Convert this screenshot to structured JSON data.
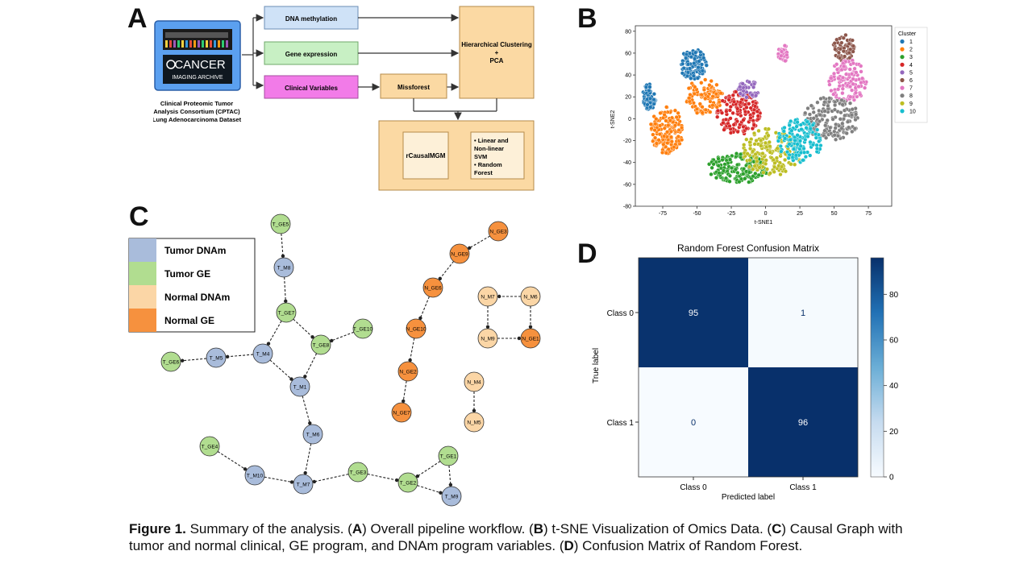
{
  "figure": {
    "panel_letters": [
      "A",
      "B",
      "C",
      "D"
    ],
    "caption": {
      "label": "Figure 1.",
      "parts": [
        {
          "t": " Summary of the analysis. (",
          "b": false
        },
        {
          "t": "A",
          "b": true
        },
        {
          "t": ") Overall pipeline workflow. (",
          "b": false
        },
        {
          "t": "B",
          "b": true
        },
        {
          "t": ") t-SNE Visualization of Omics Data. (",
          "b": false
        },
        {
          "t": "C",
          "b": true
        },
        {
          "t": ") Causal Graph with tumor and normal clinical, GE program, and DNAm program variables. (",
          "b": false
        },
        {
          "t": "D",
          "b": true
        },
        {
          "t": ") Confusion Matrix of Random Forest.",
          "b": false
        }
      ]
    }
  },
  "pipeline": {
    "logo_text_big": "CANCER",
    "logo_text_small": "IMAGING ARCHIVE",
    "dataset_label": [
      "Clinical Proteomic Tumor",
      "Analysis Consortium (CPTAC)",
      "Lung Adenocarcinoma Dataset"
    ],
    "inputs": [
      "DNA methylation",
      "Gene expression",
      "Clinical Variables"
    ],
    "clustering": [
      "Hierarchical Clustering",
      "+",
      "PCA"
    ],
    "missforest": "Missforest",
    "rcausal": "rCausalMGM",
    "models": [
      "• Linear  and",
      "  Non-linear",
      "  SVM",
      "• Random",
      "  Forest"
    ],
    "colors": {
      "dna": "#cfe2f7",
      "ge": "#c8f0c4",
      "clin": "#f27be8",
      "orange": "#fbd9a3",
      "logo": "#5ba0f0"
    }
  },
  "tsne": {
    "xlabel": "t-SNE1",
    "ylabel": "t-SNE2",
    "legend_title": "Cluster",
    "xticks": [
      -75,
      -50,
      -25,
      0,
      25,
      50,
      75
    ],
    "yticks": [
      80,
      60,
      40,
      20,
      0,
      -20,
      -40,
      -60,
      -80
    ],
    "xlim": [
      -95,
      92
    ],
    "ylim": [
      -80,
      85
    ],
    "clusters": [
      {
        "name": "1",
        "color": "#1f77b4"
      },
      {
        "name": "2",
        "color": "#ff7f0e"
      },
      {
        "name": "3",
        "color": "#2ca02c"
      },
      {
        "name": "4",
        "color": "#d62728"
      },
      {
        "name": "5",
        "color": "#9467bd"
      },
      {
        "name": "6",
        "color": "#8c564b"
      },
      {
        "name": "7",
        "color": "#e377c2"
      },
      {
        "name": "8",
        "color": "#7f7f7f"
      },
      {
        "name": "9",
        "color": "#bcbd22"
      },
      {
        "name": "10",
        "color": "#17becf"
      }
    ]
  },
  "causal_graph": {
    "legend": [
      {
        "label": "Tumor DNAm",
        "color": "#a9bcdb"
      },
      {
        "label": "Tumor GE",
        "color": "#b1dd90"
      },
      {
        "label": "Normal DNAm",
        "color": "#fbd6a6"
      },
      {
        "label": "Normal GE",
        "color": "#f6913e"
      }
    ],
    "nodes": [
      {
        "id": "T_GE5",
        "kind": 1
      },
      {
        "id": "T_M8",
        "kind": 0
      },
      {
        "id": "T_GE7",
        "kind": 1
      },
      {
        "id": "T_GE10",
        "kind": 1
      },
      {
        "id": "T_GE8",
        "kind": 1
      },
      {
        "id": "T_M4",
        "kind": 0
      },
      {
        "id": "T_GE6",
        "kind": 1
      },
      {
        "id": "T_M5",
        "kind": 0
      },
      {
        "id": "T_M1",
        "kind": 0
      },
      {
        "id": "T_M6",
        "kind": 0
      },
      {
        "id": "T_GE4",
        "kind": 1
      },
      {
        "id": "T_M10",
        "kind": 0
      },
      {
        "id": "T_M7",
        "kind": 0
      },
      {
        "id": "T_GE3",
        "kind": 1
      },
      {
        "id": "T_GE2",
        "kind": 1
      },
      {
        "id": "T_GE1",
        "kind": 1
      },
      {
        "id": "T_M9",
        "kind": 0
      },
      {
        "id": "N_GE3",
        "kind": 3
      },
      {
        "id": "N_GE9",
        "kind": 3
      },
      {
        "id": "N_GE6",
        "kind": 3
      },
      {
        "id": "N_GE10",
        "kind": 3
      },
      {
        "id": "N_GE2",
        "kind": 3
      },
      {
        "id": "N_GE7",
        "kind": 3
      },
      {
        "id": "N_M7",
        "kind": 2
      },
      {
        "id": "N_M6",
        "kind": 2
      },
      {
        "id": "N_M9",
        "kind": 2
      },
      {
        "id": "N_GE1",
        "kind": 3
      },
      {
        "id": "N_M4",
        "kind": 2
      },
      {
        "id": "N_M5",
        "kind": 2
      }
    ],
    "edges": [
      [
        "T_GE5",
        "T_M8"
      ],
      [
        "T_M8",
        "T_GE7"
      ],
      [
        "T_GE7",
        "T_M4"
      ],
      [
        "T_GE7",
        "T_GE8"
      ],
      [
        "T_GE10",
        "T_GE8"
      ],
      [
        "T_GE8",
        "T_M1"
      ],
      [
        "T_M4",
        "T_M5"
      ],
      [
        "T_M5",
        "T_GE6"
      ],
      [
        "T_M4",
        "T_M1"
      ],
      [
        "T_M1",
        "T_M6"
      ],
      [
        "T_M6",
        "T_M7"
      ],
      [
        "T_GE4",
        "T_M10"
      ],
      [
        "T_M10",
        "T_M7"
      ],
      [
        "T_GE3",
        "T_M7"
      ],
      [
        "T_GE3",
        "T_GE2"
      ],
      [
        "T_GE1",
        "T_GE2"
      ],
      [
        "T_GE1",
        "T_M9"
      ],
      [
        "T_GE2",
        "T_M9"
      ],
      [
        "N_GE3",
        "N_GE9"
      ],
      [
        "N_GE9",
        "N_GE6"
      ],
      [
        "N_GE6",
        "N_GE10"
      ],
      [
        "N_GE10",
        "N_GE2"
      ],
      [
        "N_GE2",
        "N_GE7"
      ],
      [
        "N_M6",
        "N_M7"
      ],
      [
        "N_M7",
        "N_M9"
      ],
      [
        "N_M6",
        "N_GE1"
      ],
      [
        "N_M9",
        "N_GE1"
      ],
      [
        "N_M4",
        "N_M5"
      ]
    ]
  },
  "chart_data": {
    "type": "heatmap",
    "title": "Random Forest Confusion Matrix",
    "xlabel": "Predicted label",
    "ylabel": "True label",
    "x_categories": [
      "Class 0",
      "Class 1"
    ],
    "y_categories": [
      "Class 0",
      "Class 1"
    ],
    "values": [
      [
        95,
        1
      ],
      [
        0,
        96
      ]
    ],
    "colorbar_ticks": [
      0,
      20,
      40,
      60,
      80
    ],
    "colorbar_range": [
      0,
      96
    ],
    "colormap": "Blues"
  }
}
